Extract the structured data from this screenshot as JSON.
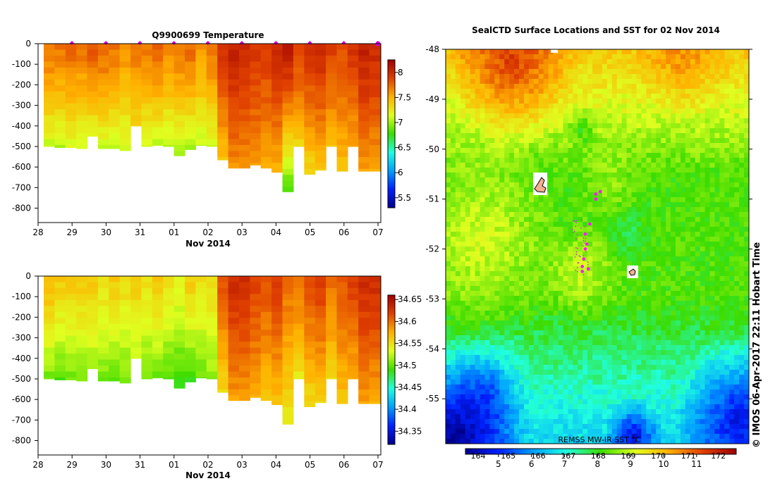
{
  "chart_data": [
    {
      "type": "heatmap",
      "title": "Q9900699  Temperature",
      "xlabel": "Nov 2014",
      "ylabel": "",
      "x_ticks": [
        "28",
        "29",
        "30",
        "31",
        "01",
        "02",
        "03",
        "04",
        "05",
        "06",
        "07"
      ],
      "y_ticks": [
        "0",
        "-100",
        "-200",
        "-300",
        "-400",
        "-500",
        "-600",
        "-700",
        "-800"
      ],
      "ylim": [
        -870,
        0
      ],
      "colorbar_ticks": [
        "8",
        "7.5",
        "7",
        "6.5",
        "6",
        "5.5"
      ],
      "colorbar_range": [
        5.3,
        8.25
      ],
      "profile_max_depths": [
        500,
        505,
        505,
        510,
        450,
        510,
        510,
        520,
        400,
        500,
        495,
        500,
        545,
        515,
        495,
        500,
        565,
        605,
        605,
        590,
        605,
        625,
        720,
        500,
        635,
        615,
        500,
        620,
        500,
        620,
        620
      ],
      "surface_values": [
        7.7,
        7.7,
        7.75,
        7.7,
        7.8,
        7.75,
        7.7,
        7.6,
        7.7,
        7.7,
        7.75,
        7.65,
        7.7,
        7.75,
        7.6,
        7.7,
        7.95,
        8.05,
        8.0,
        7.95,
        7.9,
        8.0,
        8.1,
        7.9,
        7.95,
        8.0,
        7.9,
        7.85,
        7.95,
        8.05,
        8.0
      ],
      "bottom_values": [
        7.05,
        7.0,
        7.1,
        7.05,
        7.1,
        7.05,
        7.0,
        7.05,
        7.3,
        7.05,
        7.05,
        7.0,
        6.95,
        6.95,
        7.05,
        7.1,
        7.4,
        7.6,
        7.6,
        7.55,
        7.5,
        7.45,
        6.75,
        7.3,
        7.3,
        7.35,
        7.4,
        7.4,
        7.5,
        7.55,
        7.5
      ]
    },
    {
      "type": "heatmap",
      "title": "",
      "xlabel": "Nov 2014",
      "ylabel": "",
      "x_ticks": [
        "28",
        "29",
        "30",
        "31",
        "01",
        "02",
        "03",
        "04",
        "05",
        "06",
        "07"
      ],
      "y_ticks": [
        "0",
        "-100",
        "-200",
        "-300",
        "-400",
        "-500",
        "-600",
        "-700",
        "-800"
      ],
      "ylim": [
        -870,
        0
      ],
      "colorbar_ticks": [
        "34.65",
        "34.6",
        "34.55",
        "34.5",
        "34.45",
        "34.4",
        "34.35"
      ],
      "colorbar_range": [
        34.32,
        34.66
      ],
      "profile_max_depths": [
        500,
        505,
        505,
        510,
        450,
        510,
        510,
        520,
        400,
        500,
        495,
        500,
        545,
        515,
        495,
        500,
        565,
        605,
        605,
        590,
        605,
        625,
        720,
        500,
        635,
        615,
        500,
        620,
        500,
        620,
        620
      ],
      "surface_values": [
        34.57,
        34.56,
        34.56,
        34.56,
        34.56,
        34.55,
        34.56,
        34.55,
        34.56,
        34.55,
        34.56,
        34.55,
        34.54,
        34.56,
        34.55,
        34.55,
        34.61,
        34.63,
        34.63,
        34.62,
        34.61,
        34.62,
        34.6,
        34.6,
        34.61,
        34.62,
        34.6,
        34.61,
        34.62,
        34.63,
        34.63
      ],
      "bottom_values": [
        34.5,
        34.49,
        34.5,
        34.5,
        34.51,
        34.5,
        34.49,
        34.5,
        34.52,
        34.5,
        34.5,
        34.49,
        34.48,
        34.48,
        34.5,
        34.51,
        34.55,
        34.58,
        34.58,
        34.57,
        34.56,
        34.56,
        34.54,
        34.54,
        34.55,
        34.55,
        34.55,
        34.56,
        34.57,
        34.58,
        34.57
      ]
    },
    {
      "type": "heatmap",
      "title": "SealCTD Surface Locations and SST for 02 Nov 2014",
      "xlabel": "",
      "ylabel": "",
      "y_ticks": [
        "-48",
        "-49",
        "-50",
        "-51",
        "-52",
        "-53",
        "-54",
        "-55"
      ],
      "ylim": [
        -55.9,
        -48
      ],
      "colorbar_ticks_top": [
        "164",
        "165",
        "166",
        "167",
        "168",
        "169",
        "170",
        "171",
        "172"
      ],
      "colorbar_ticks_bottom": [
        "5",
        "6",
        "7",
        "8",
        "9",
        "10",
        "11"
      ],
      "colorbar_range": [
        4.0,
        12.2
      ],
      "source_label": "REMSS MW-IR SST °C",
      "surface_locations": [
        {
          "lon": 168.5,
          "lat": -50.9
        },
        {
          "lon": 168.65,
          "lat": -50.85
        },
        {
          "lon": 168.5,
          "lat": -51.0
        },
        {
          "lon": 168.3,
          "lat": -51.5
        },
        {
          "lon": 168.15,
          "lat": -51.7
        },
        {
          "lon": 168.2,
          "lat": -51.9
        },
        {
          "lon": 168.15,
          "lat": -52.0
        },
        {
          "lon": 168.1,
          "lat": -52.2
        },
        {
          "lon": 168.05,
          "lat": -52.35
        },
        {
          "lon": 168.05,
          "lat": -52.45
        },
        {
          "lon": 168.25,
          "lat": -52.4
        }
      ]
    }
  ],
  "credit": "© IMOS 06-Apr-2017 22:11 Hobart Time",
  "colors": {
    "profile_marker": "#dd00dd",
    "sst_location_marker": "#ee22ee",
    "frame": "#000000"
  }
}
